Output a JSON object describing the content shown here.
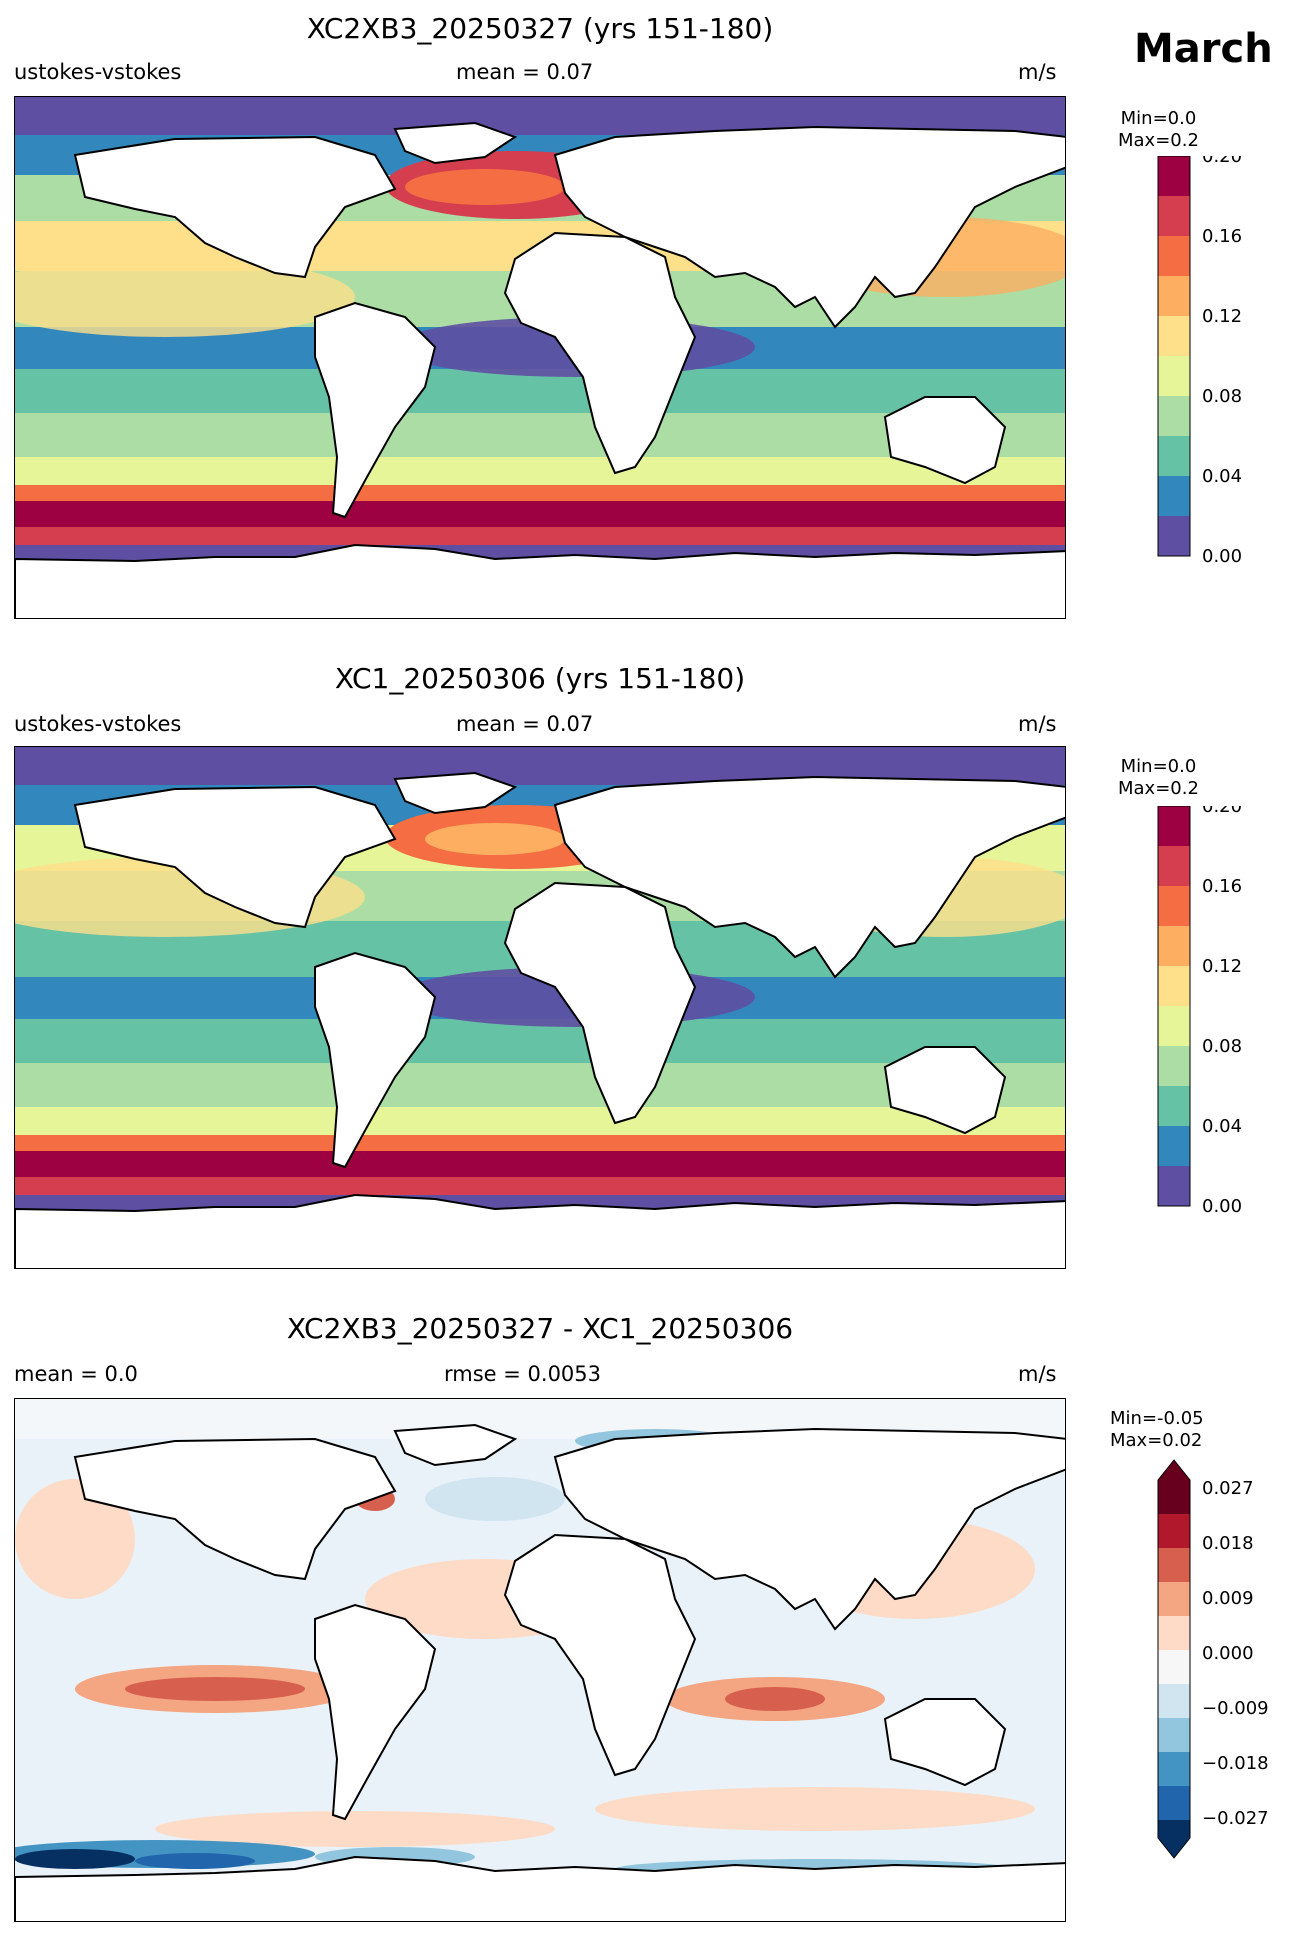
{
  "month": "March",
  "units_label": "m/s",
  "panels": [
    {
      "title": "XC2XB3_20250327 (yrs 151-180)",
      "variable": "ustokes-vstokes",
      "mean": "mean = 0.07",
      "minmax": "Min=0.0\nMax=0.2",
      "colorbar": {
        "ticks": [
          "0.20",
          "0.16",
          "0.12",
          "0.08",
          "0.04",
          "0.00"
        ],
        "colors": [
          "#5e4fa2",
          "#3288bd",
          "#66c2a5",
          "#abdda4",
          "#e6f598",
          "#fee08b",
          "#fdae61",
          "#f46d43",
          "#d53e4f",
          "#9e0142"
        ]
      }
    },
    {
      "title": "XC1_20250306 (yrs 151-180)",
      "variable": "ustokes-vstokes",
      "mean": "mean = 0.07",
      "minmax": "Min=0.0\nMax=0.2",
      "colorbar": {
        "ticks": [
          "0.20",
          "0.16",
          "0.12",
          "0.08",
          "0.04",
          "0.00"
        ],
        "colors": [
          "#5e4fa2",
          "#3288bd",
          "#66c2a5",
          "#abdda4",
          "#e6f598",
          "#fee08b",
          "#fdae61",
          "#f46d43",
          "#d53e4f",
          "#9e0142"
        ]
      }
    },
    {
      "title": "XC2XB3_20250327 - XC1_20250306",
      "mean": "mean = 0.0",
      "rmse": "rmse = 0.0053",
      "minmax": "Min=-0.05\nMax=0.02",
      "colorbar": {
        "ticks": [
          "0.027",
          "0.018",
          "0.009",
          "0.000",
          "−0.009",
          "−0.018",
          "−0.027"
        ],
        "colors": [
          "#053061",
          "#2166ac",
          "#4393c3",
          "#92c5de",
          "#d1e5f0",
          "#f7f7f7",
          "#fddbc7",
          "#f4a582",
          "#d6604d",
          "#b2182b",
          "#67001f"
        ]
      }
    }
  ]
}
